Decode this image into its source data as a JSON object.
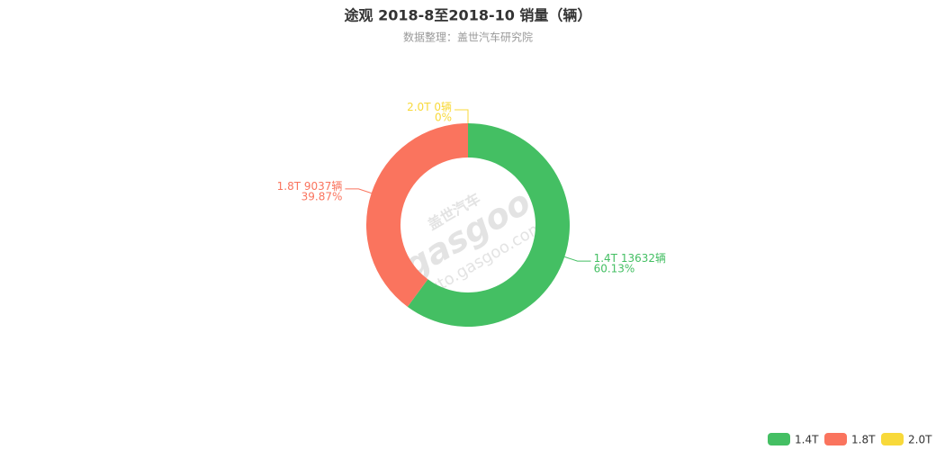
{
  "chart_data": {
    "type": "donut",
    "title": "途观 2018-8至2018-10 销量（辆）",
    "subtitle": "数据整理：盖世汽车研究院",
    "watermark": [
      "盖世汽车",
      "gasgoo",
      "auto.gasgoo.com"
    ],
    "categories": [
      "1.4T",
      "1.8T",
      "2.0T"
    ],
    "values": [
      13632,
      9037,
      0
    ],
    "value_labels": [
      "13632辆",
      "9037辆",
      "0辆"
    ],
    "percents": [
      60.13,
      39.87,
      0
    ],
    "percent_labels": [
      "60.13%",
      "39.87%",
      "0%"
    ],
    "colors": [
      "#44bf63",
      "#fa745e",
      "#f8d93a"
    ],
    "legend": "bottom-right"
  }
}
